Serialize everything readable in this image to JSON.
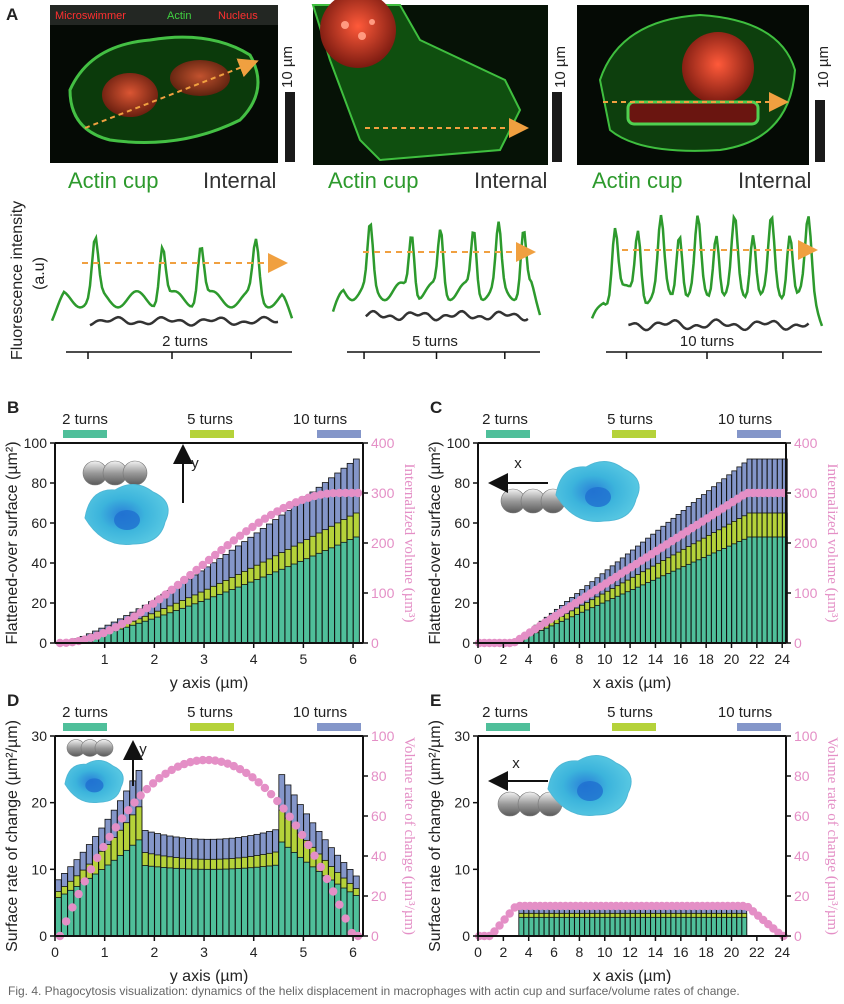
{
  "colors": {
    "t2": "#4fbf9a",
    "t5": "#b5d23a",
    "t10": "#8496c9",
    "pink": "#e48fc6",
    "actin": "#2d9a2d",
    "internal": "#333333",
    "arrow": "#f0a040",
    "micro": "#ff3030",
    "cell": "#39b3d8"
  },
  "panelA": {
    "label": "A",
    "legend": {
      "micro": "Microswimmer",
      "actin": "Actin",
      "nucleus": "Nucleus"
    },
    "scalebar": "10 µm",
    "actin_cup": "Actin cup",
    "internal": "Internal",
    "ylabel1": "Fluorescence intensity",
    "ylabel2": "(a.u)",
    "turn_labels": [
      "2 turns",
      "5 turns",
      "10 turns"
    ]
  },
  "legend_turns": [
    "2 turns",
    "5 turns",
    "10 turns"
  ],
  "chart_data": [
    {
      "panel": "B",
      "type": "bar",
      "stacked": true,
      "x_units": "µm",
      "xlabel": "y axis (µm)",
      "ylabel": "Flattened-over surface (µm²)",
      "y2label": "Internalized volume (µm³)",
      "xlim": [
        0,
        6.2
      ],
      "ylim": [
        0,
        100
      ],
      "y2lim": [
        0,
        400
      ],
      "xticks": [
        1,
        2,
        3,
        4,
        5,
        6
      ],
      "yticks": [
        0,
        20,
        40,
        60,
        80,
        100
      ],
      "y2ticks": [
        0,
        100,
        200,
        300,
        400
      ],
      "arrow_label": "y",
      "bin": 0.125,
      "series": [
        {
          "name": "2 turns",
          "shape": "surface_y",
          "total": 53
        },
        {
          "name": "5 turns",
          "shape": "surface_y",
          "total": 65
        },
        {
          "name": "10 turns",
          "shape": "surface_y",
          "total": 92
        }
      ],
      "line": {
        "name": "Internalized volume",
        "shape": "volume_y",
        "total": 300
      }
    },
    {
      "panel": "C",
      "type": "bar",
      "stacked": true,
      "x_units": "µm",
      "xlabel": "x axis (µm)",
      "ylabel": "Flattened-over surface (µm²)",
      "y2label": "Internalized volume (µm³)",
      "xlim": [
        0,
        24.3
      ],
      "ylim": [
        0,
        100
      ],
      "y2lim": [
        0,
        400
      ],
      "xticks": [
        0,
        2,
        4,
        6,
        8,
        10,
        12,
        14,
        16,
        18,
        20,
        22,
        24
      ],
      "yticks": [
        0,
        20,
        40,
        60,
        80,
        100
      ],
      "y2ticks": [
        0,
        100,
        200,
        300,
        400
      ],
      "arrow_label": "x",
      "bin": 0.4,
      "series": [
        {
          "name": "2 turns",
          "shape": "surface_x",
          "total": 53
        },
        {
          "name": "5 turns",
          "shape": "surface_x",
          "total": 65
        },
        {
          "name": "10 turns",
          "shape": "surface_x",
          "total": 92
        }
      ],
      "line": {
        "name": "Internalized volume",
        "shape": "volume_x",
        "total": 300
      }
    },
    {
      "panel": "D",
      "type": "bar",
      "stacked": true,
      "x_units": "µm",
      "xlabel": "y axis (µm)",
      "ylabel": "Surface rate of change (µm²/µm)",
      "y2label": "Volume rate of change (µm³/µm)",
      "xlim": [
        0,
        6.2
      ],
      "ylim": [
        0,
        30
      ],
      "y2lim": [
        0,
        100
      ],
      "xticks": [
        0,
        1,
        2,
        3,
        4,
        5,
        6
      ],
      "yticks": [
        0,
        10,
        20,
        30
      ],
      "y2ticks": [
        0,
        20,
        40,
        60,
        80,
        100
      ],
      "arrow_label": "y",
      "bin": 0.125,
      "series": [
        {
          "name": "2 turns",
          "shape": "rate_y",
          "peak": 14.5,
          "mid": 10.0
        },
        {
          "name": "5 turns",
          "shape": "rate_y",
          "peak": 19.5,
          "mid": 11.5
        },
        {
          "name": "10 turns",
          "shape": "rate_y",
          "peak": 25.0,
          "mid": 14.5
        }
      ],
      "line": {
        "name": "Volume rate of change",
        "shape": "vrate_y",
        "peak": 88
      }
    },
    {
      "panel": "E",
      "type": "bar",
      "stacked": true,
      "x_units": "µm",
      "xlabel": "x axis (µm)",
      "ylabel": "Surface rate of change (µm²/µm)",
      "y2label": "Volume rate of change (µm³/µm)",
      "xlim": [
        0,
        24.3
      ],
      "ylim": [
        0,
        30
      ],
      "y2lim": [
        0,
        100
      ],
      "xticks": [
        0,
        2,
        4,
        6,
        8,
        10,
        12,
        14,
        16,
        18,
        20,
        22,
        24
      ],
      "yticks": [
        0,
        10,
        20,
        30
      ],
      "y2ticks": [
        0,
        20,
        40,
        60,
        80,
        100
      ],
      "arrow_label": "x",
      "bin": 0.4,
      "series": [
        {
          "name": "2 turns",
          "shape": "rate_x",
          "plateau": 2.8
        },
        {
          "name": "5 turns",
          "shape": "rate_x",
          "plateau": 3.4
        },
        {
          "name": "10 turns",
          "shape": "rate_x",
          "plateau": 4.8
        }
      ],
      "line": {
        "name": "Volume rate of change",
        "shape": "vrate_x",
        "plateau": 15
      }
    }
  ],
  "caption": "Fig. 4. Phagocytosis visualization: dynamics of the helix displacement in macrophages with actin cup and surface/volume rates of change."
}
